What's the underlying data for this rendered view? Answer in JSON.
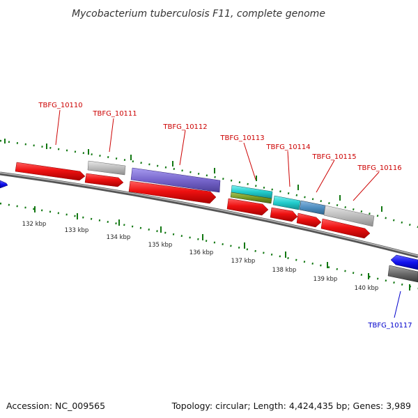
{
  "title": "Mycobacterium tuberculosis F11, complete genome",
  "footer": {
    "accession": "Accession: NC_009565",
    "topology": "Topology: circular; Length: 4,424,435 bp; Genes: 3,989"
  },
  "ruler_labels": [
    "132 kbp",
    "133 kbp",
    "134 kbp",
    "135 kbp",
    "136 kbp",
    "137 kbp",
    "138 kbp",
    "139 kbp",
    "140 kbp"
  ],
  "colors": {
    "red": "#ee1111",
    "light-gray": "#bdbdbd",
    "purple": "#7766cc",
    "cyan": "#22cccc",
    "olive": "#779922",
    "steel-blue": "#4f8ec0",
    "blue": "#1111ee",
    "dark-gray": "#6a6a6a",
    "tick-green": "#117711",
    "red-label": "#cc0000",
    "blue-label": "#0000cc"
  },
  "gene_labels": [
    {
      "name": "TBFG_10110",
      "color": "red-label"
    },
    {
      "name": "TBFG_10111",
      "color": "red-label"
    },
    {
      "name": "TBFG_10112",
      "color": "red-label"
    },
    {
      "name": "TBFG_10113",
      "color": "red-label"
    },
    {
      "name": "TBFG_10114",
      "color": "red-label"
    },
    {
      "name": "TBFG_10115",
      "color": "red-label"
    },
    {
      "name": "TBFG_10116",
      "color": "red-label"
    },
    {
      "name": "TBFG_10117",
      "color": "blue-label"
    }
  ]
}
